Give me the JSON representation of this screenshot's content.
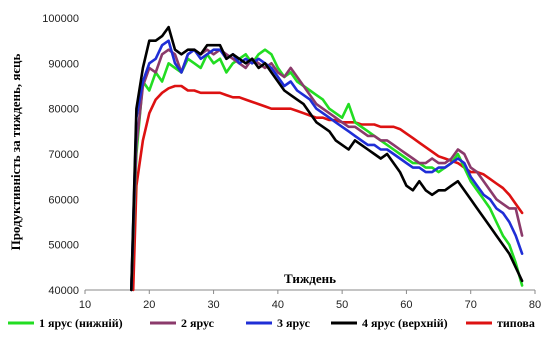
{
  "chart_data": {
    "type": "line",
    "xlabel": "Тиждень",
    "ylabel": "Продуктивність за тиждень, яєць",
    "xlim": [
      10,
      80
    ],
    "ylim": [
      40000,
      100000
    ],
    "x_ticks": [
      "10",
      "20",
      "30",
      "40",
      "50",
      "60",
      "70",
      "80"
    ],
    "y_ticks": [
      "40000",
      "50000",
      "60000",
      "70000",
      "80000",
      "90000",
      "100000"
    ],
    "grid": false,
    "legend_position": "bottom",
    "series": [
      {
        "name": "1 ярус (нижній)",
        "color": "#22dd22",
        "points": [
          [
            17.2,
            40000
          ],
          [
            18,
            70000
          ],
          [
            19,
            86000
          ],
          [
            20,
            84000
          ],
          [
            21,
            88000
          ],
          [
            22,
            86000
          ],
          [
            23,
            90000
          ],
          [
            24,
            89000
          ],
          [
            25,
            88000
          ],
          [
            26,
            91000
          ],
          [
            27,
            90000
          ],
          [
            28,
            89000
          ],
          [
            29,
            92000
          ],
          [
            30,
            90000
          ],
          [
            31,
            91000
          ],
          [
            32,
            88000
          ],
          [
            33,
            90000
          ],
          [
            34,
            91000
          ],
          [
            35,
            92000
          ],
          [
            36,
            90000
          ],
          [
            37,
            92000
          ],
          [
            38,
            93000
          ],
          [
            39,
            92000
          ],
          [
            40,
            89000
          ],
          [
            41,
            87000
          ],
          [
            42,
            88000
          ],
          [
            43,
            86000
          ],
          [
            44,
            85000
          ],
          [
            45,
            84000
          ],
          [
            46,
            83000
          ],
          [
            47,
            82000
          ],
          [
            48,
            80000
          ],
          [
            49,
            79000
          ],
          [
            50,
            78000
          ],
          [
            51,
            81000
          ],
          [
            52,
            77000
          ],
          [
            53,
            76000
          ],
          [
            54,
            75000
          ],
          [
            55,
            74000
          ],
          [
            56,
            73000
          ],
          [
            57,
            72000
          ],
          [
            58,
            71000
          ],
          [
            59,
            70000
          ],
          [
            60,
            69000
          ],
          [
            61,
            68000
          ],
          [
            62,
            68000
          ],
          [
            63,
            67000
          ],
          [
            64,
            67000
          ],
          [
            65,
            66000
          ],
          [
            66,
            67000
          ],
          [
            67,
            68000
          ],
          [
            68,
            70000
          ],
          [
            69,
            67000
          ],
          [
            70,
            64000
          ],
          [
            71,
            62000
          ],
          [
            72,
            60000
          ],
          [
            73,
            58000
          ],
          [
            74,
            55000
          ],
          [
            75,
            52000
          ],
          [
            76,
            50000
          ],
          [
            77,
            46000
          ],
          [
            78,
            41000
          ]
        ]
      },
      {
        "name": "2 ярус",
        "color": "#8b3a6b",
        "points": [
          [
            17.2,
            40000
          ],
          [
            18,
            72000
          ],
          [
            19,
            85000
          ],
          [
            20,
            89000
          ],
          [
            21,
            88000
          ],
          [
            22,
            92000
          ],
          [
            23,
            93000
          ],
          [
            24,
            92000
          ],
          [
            25,
            88000
          ],
          [
            26,
            92000
          ],
          [
            27,
            93000
          ],
          [
            28,
            92000
          ],
          [
            29,
            93000
          ],
          [
            30,
            92000
          ],
          [
            31,
            93000
          ],
          [
            32,
            92000
          ],
          [
            33,
            91000
          ],
          [
            34,
            90000
          ],
          [
            35,
            89000
          ],
          [
            36,
            91000
          ],
          [
            37,
            90000
          ],
          [
            38,
            89000
          ],
          [
            39,
            90000
          ],
          [
            40,
            88000
          ],
          [
            41,
            87000
          ],
          [
            42,
            89000
          ],
          [
            43,
            87000
          ],
          [
            44,
            85000
          ],
          [
            45,
            83000
          ],
          [
            46,
            81000
          ],
          [
            47,
            80000
          ],
          [
            48,
            79000
          ],
          [
            49,
            78000
          ],
          [
            50,
            77000
          ],
          [
            51,
            76000
          ],
          [
            52,
            76000
          ],
          [
            53,
            75000
          ],
          [
            54,
            74000
          ],
          [
            55,
            74000
          ],
          [
            56,
            73000
          ],
          [
            57,
            73000
          ],
          [
            58,
            72000
          ],
          [
            59,
            71000
          ],
          [
            60,
            70000
          ],
          [
            61,
            69000
          ],
          [
            62,
            68000
          ],
          [
            63,
            68000
          ],
          [
            64,
            69000
          ],
          [
            65,
            68000
          ],
          [
            66,
            68000
          ],
          [
            67,
            69000
          ],
          [
            68,
            71000
          ],
          [
            69,
            70000
          ],
          [
            70,
            67000
          ],
          [
            71,
            66000
          ],
          [
            72,
            64000
          ],
          [
            73,
            62000
          ],
          [
            74,
            60000
          ],
          [
            75,
            59000
          ],
          [
            76,
            58000
          ],
          [
            77,
            58000
          ],
          [
            78,
            52000
          ]
        ]
      },
      {
        "name": "3 ярус",
        "color": "#1f2ed6",
        "points": [
          [
            17.2,
            40000
          ],
          [
            18,
            78000
          ],
          [
            19,
            86000
          ],
          [
            20,
            90000
          ],
          [
            21,
            91000
          ],
          [
            22,
            94000
          ],
          [
            23,
            95000
          ],
          [
            24,
            90000
          ],
          [
            25,
            88000
          ],
          [
            26,
            92000
          ],
          [
            27,
            93000
          ],
          [
            28,
            91000
          ],
          [
            29,
            92000
          ],
          [
            30,
            93000
          ],
          [
            31,
            93000
          ],
          [
            32,
            91000
          ],
          [
            33,
            92000
          ],
          [
            34,
            90000
          ],
          [
            35,
            91000
          ],
          [
            36,
            90000
          ],
          [
            37,
            91000
          ],
          [
            38,
            90000
          ],
          [
            39,
            89000
          ],
          [
            40,
            87000
          ],
          [
            41,
            85000
          ],
          [
            42,
            86000
          ],
          [
            43,
            84000
          ],
          [
            44,
            83000
          ],
          [
            45,
            82000
          ],
          [
            46,
            80000
          ],
          [
            47,
            79000
          ],
          [
            48,
            78000
          ],
          [
            49,
            77000
          ],
          [
            50,
            76000
          ],
          [
            51,
            75000
          ],
          [
            52,
            74000
          ],
          [
            53,
            73000
          ],
          [
            54,
            72000
          ],
          [
            55,
            72000
          ],
          [
            56,
            71000
          ],
          [
            57,
            71000
          ],
          [
            58,
            70000
          ],
          [
            59,
            69000
          ],
          [
            60,
            68000
          ],
          [
            61,
            67000
          ],
          [
            62,
            67000
          ],
          [
            63,
            66000
          ],
          [
            64,
            66000
          ],
          [
            65,
            67000
          ],
          [
            66,
            67000
          ],
          [
            67,
            68000
          ],
          [
            68,
            69000
          ],
          [
            69,
            68000
          ],
          [
            70,
            65000
          ],
          [
            71,
            63000
          ],
          [
            72,
            61000
          ],
          [
            73,
            60000
          ],
          [
            74,
            58000
          ],
          [
            75,
            57000
          ],
          [
            76,
            55000
          ],
          [
            77,
            52000
          ],
          [
            78,
            48000
          ]
        ]
      },
      {
        "name": "4 ярус (верхній)",
        "color": "#000000",
        "points": [
          [
            17.2,
            40000
          ],
          [
            18,
            80000
          ],
          [
            19,
            89000
          ],
          [
            20,
            95000
          ],
          [
            21,
            95000
          ],
          [
            22,
            96000
          ],
          [
            23,
            98000
          ],
          [
            24,
            93000
          ],
          [
            25,
            92000
          ],
          [
            26,
            93000
          ],
          [
            27,
            93000
          ],
          [
            28,
            92000
          ],
          [
            29,
            94000
          ],
          [
            30,
            94000
          ],
          [
            31,
            94000
          ],
          [
            32,
            91000
          ],
          [
            33,
            92000
          ],
          [
            34,
            91000
          ],
          [
            35,
            90000
          ],
          [
            36,
            91000
          ],
          [
            37,
            89000
          ],
          [
            38,
            90000
          ],
          [
            39,
            88000
          ],
          [
            40,
            86000
          ],
          [
            41,
            84000
          ],
          [
            42,
            83000
          ],
          [
            43,
            82000
          ],
          [
            44,
            81000
          ],
          [
            45,
            79000
          ],
          [
            46,
            77000
          ],
          [
            47,
            76000
          ],
          [
            48,
            75000
          ],
          [
            49,
            73000
          ],
          [
            50,
            72000
          ],
          [
            51,
            71000
          ],
          [
            52,
            73000
          ],
          [
            53,
            72000
          ],
          [
            54,
            71000
          ],
          [
            55,
            70000
          ],
          [
            56,
            69000
          ],
          [
            57,
            70000
          ],
          [
            58,
            68000
          ],
          [
            59,
            66000
          ],
          [
            60,
            63000
          ],
          [
            61,
            62000
          ],
          [
            62,
            64000
          ],
          [
            63,
            62000
          ],
          [
            64,
            61000
          ],
          [
            65,
            62000
          ],
          [
            66,
            62000
          ],
          [
            67,
            63000
          ],
          [
            68,
            64000
          ],
          [
            69,
            62000
          ],
          [
            70,
            60000
          ],
          [
            71,
            58000
          ],
          [
            72,
            56000
          ],
          [
            73,
            54000
          ],
          [
            74,
            52000
          ],
          [
            75,
            50000
          ],
          [
            76,
            48000
          ],
          [
            77,
            45000
          ],
          [
            78,
            42000
          ]
        ]
      },
      {
        "name": "типова",
        "color": "#dd1111",
        "points": [
          [
            17.5,
            40000
          ],
          [
            18,
            63000
          ],
          [
            19,
            73000
          ],
          [
            20,
            79000
          ],
          [
            21,
            82000
          ],
          [
            22,
            83500
          ],
          [
            23,
            84500
          ],
          [
            24,
            85000
          ],
          [
            25,
            85000
          ],
          [
            26,
            84000
          ],
          [
            27,
            84000
          ],
          [
            28,
            83500
          ],
          [
            29,
            83500
          ],
          [
            30,
            83500
          ],
          [
            31,
            83500
          ],
          [
            32,
            83000
          ],
          [
            33,
            82500
          ],
          [
            34,
            82500
          ],
          [
            35,
            82000
          ],
          [
            36,
            81500
          ],
          [
            37,
            81000
          ],
          [
            38,
            80500
          ],
          [
            39,
            80000
          ],
          [
            40,
            80000
          ],
          [
            41,
            80000
          ],
          [
            42,
            80000
          ],
          [
            43,
            79500
          ],
          [
            44,
            79000
          ],
          [
            45,
            78500
          ],
          [
            46,
            78000
          ],
          [
            47,
            78000
          ],
          [
            48,
            77500
          ],
          [
            49,
            77500
          ],
          [
            50,
            77000
          ],
          [
            51,
            77000
          ],
          [
            52,
            77000
          ],
          [
            53,
            76500
          ],
          [
            54,
            76500
          ],
          [
            55,
            76500
          ],
          [
            56,
            76000
          ],
          [
            57,
            76000
          ],
          [
            58,
            76000
          ],
          [
            59,
            75500
          ],
          [
            60,
            74500
          ],
          [
            61,
            73500
          ],
          [
            62,
            72500
          ],
          [
            63,
            71500
          ],
          [
            64,
            70500
          ],
          [
            65,
            69500
          ],
          [
            66,
            69000
          ],
          [
            67,
            68500
          ],
          [
            68,
            68000
          ],
          [
            69,
            67000
          ],
          [
            70,
            66000
          ],
          [
            71,
            66000
          ],
          [
            72,
            65500
          ],
          [
            73,
            64500
          ],
          [
            74,
            63500
          ],
          [
            75,
            62500
          ],
          [
            76,
            61000
          ],
          [
            77,
            59000
          ],
          [
            78,
            57000
          ]
        ]
      }
    ]
  }
}
